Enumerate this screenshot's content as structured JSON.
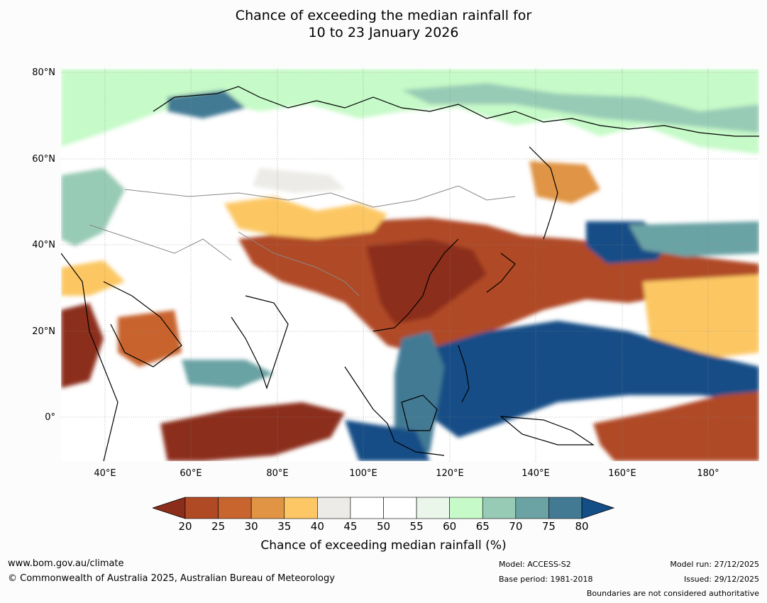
{
  "title": {
    "line1": "Chance of exceeding the median rainfall for",
    "line2": "10 to 23 January 2026"
  },
  "lat_labels": [
    "80°N",
    "60°N",
    "40°N",
    "20°N",
    "0°"
  ],
  "lon_labels": [
    "40°E",
    "60°E",
    "80°E",
    "100°E",
    "120°E",
    "140°E",
    "160°E",
    "180°"
  ],
  "colorbar": {
    "ticks": [
      "20",
      "25",
      "30",
      "35",
      "40",
      "45",
      "50",
      "55",
      "60",
      "65",
      "70",
      "75",
      "80"
    ],
    "colors": [
      "#8c2d1c",
      "#b04a25",
      "#c8642e",
      "#e09444",
      "#fcc764",
      "#ecebe7",
      "#ffffff",
      "#ffffff",
      "#e9f6e9",
      "#c6fac8",
      "#98cbb5",
      "#6ba3a4",
      "#427a94",
      "#134e86"
    ],
    "label": "Chance of exceeding median rainfall (%)"
  },
  "footer": {
    "url": "www.bom.gov.au/climate",
    "copyright": "© Commonwealth of Australia 2025, Australian Bureau of Meteorology",
    "model": "Model: ACCESS-S2",
    "base_period": "Base period: 1981-2018",
    "model_run": "Model run: 27/12/2025",
    "issued": "Issued: 29/12/2025",
    "disclaimer": "Boundaries are not considered authoritative"
  }
}
